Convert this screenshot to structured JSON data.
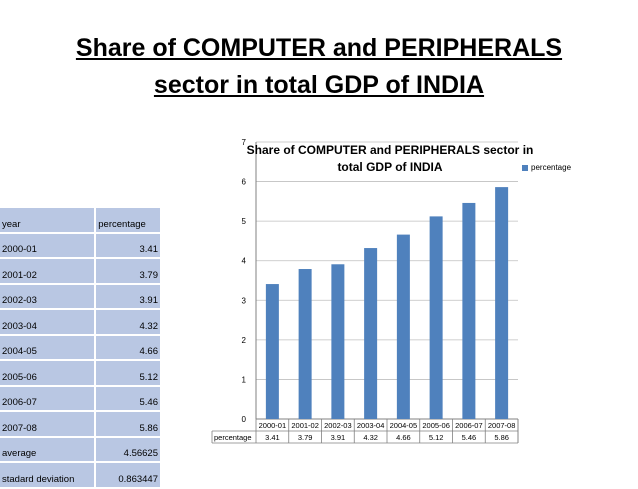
{
  "slide": {
    "title_line1": "Share of COMPUTER  and PERIPHERALS",
    "title_line2": "sector in total GDP of INDIA"
  },
  "table": {
    "headers": [
      "year",
      "percentage"
    ],
    "rows": [
      [
        "2000-01",
        "3.41"
      ],
      [
        "2001-02",
        "3.79"
      ],
      [
        "2002-03",
        "3.91"
      ],
      [
        "2003-04",
        "4.32"
      ],
      [
        "2004-05",
        "4.66"
      ],
      [
        "2005-06",
        "5.12"
      ],
      [
        "2006-07",
        "5.46"
      ],
      [
        "2007-08",
        "5.86"
      ],
      [
        "average",
        "4.56625"
      ],
      [
        "stadard deviation",
        "0.863447"
      ]
    ]
  },
  "chart_data": {
    "type": "bar",
    "title_line1": "Share of COMPUTER  and PERIPHERALS  sector in",
    "title_line2": "total GDP of INDIA",
    "categories": [
      "2000-01",
      "2001-02",
      "2002-03",
      "2003-04",
      "2004-05",
      "2005-06",
      "2006-07",
      "2007-08"
    ],
    "series": [
      {
        "name": "percentage",
        "values": [
          3.41,
          3.79,
          3.91,
          4.32,
          4.66,
          5.12,
          5.46,
          5.86
        ],
        "value_labels": [
          "3.41",
          "3.79",
          "3.91",
          "4.32",
          "4.66",
          "5.12",
          "5.46",
          "5.86"
        ]
      }
    ],
    "ylim": [
      0,
      7
    ],
    "yticks": [
      0,
      1,
      2,
      3,
      4,
      5,
      6,
      7
    ],
    "grid": true,
    "legend": "right",
    "data_table_below": true,
    "bar_color": "#4f81bd"
  }
}
